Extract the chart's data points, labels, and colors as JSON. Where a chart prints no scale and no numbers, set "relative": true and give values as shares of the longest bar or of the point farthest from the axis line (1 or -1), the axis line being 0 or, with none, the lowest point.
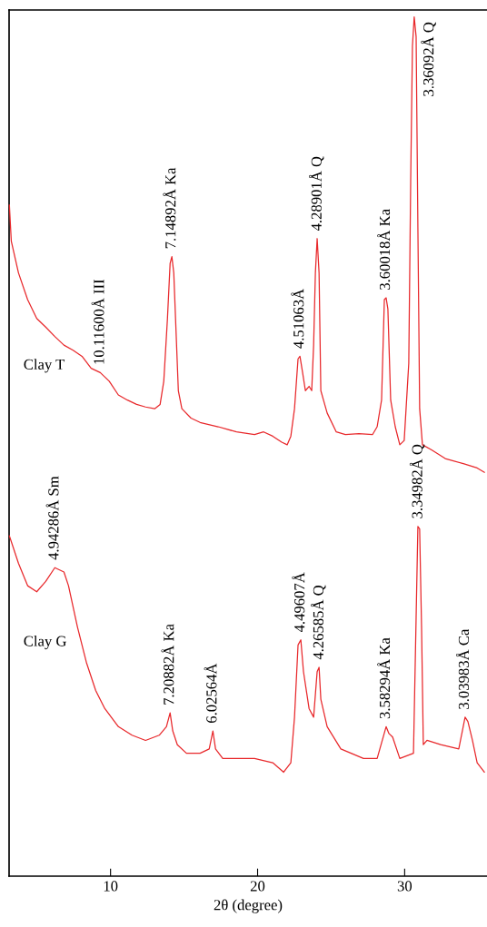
{
  "chart_data": {
    "type": "line",
    "relative": true,
    "xlabel": "2θ (degree)",
    "xlim": [
      3.1,
      35.6
    ],
    "xticks": [
      10,
      20,
      30
    ],
    "tick_labels": "x",
    "grid": false,
    "marker": "none",
    "line_style": "solid",
    "series": [
      {
        "name": "Clay T",
        "color": "#e8282b",
        "x": [
          3.12,
          3.25,
          3.74,
          4.36,
          4.98,
          5.59,
          6.21,
          6.83,
          7.45,
          8.06,
          8.68,
          9.3,
          9.91,
          10.53,
          11.15,
          11.77,
          12.38,
          13.0,
          13.37,
          13.62,
          13.87,
          14.05,
          14.17,
          14.3,
          14.42,
          14.61,
          14.85,
          15.47,
          16.09,
          17.32,
          18.56,
          19.79,
          20.41,
          21.03,
          21.64,
          22.01,
          22.26,
          22.51,
          22.75,
          22.88,
          23.06,
          23.25,
          23.5,
          23.68,
          23.81,
          23.93,
          24.05,
          24.18,
          24.3,
          24.48,
          24.73,
          25.35,
          25.97,
          26.89,
          27.82,
          28.13,
          28.43,
          28.62,
          28.74,
          28.86,
          29.05,
          29.36,
          29.67,
          29.97,
          30.28,
          30.41,
          30.53,
          30.65,
          30.78,
          30.9,
          31.02,
          31.21,
          31.83,
          32.76,
          33.99,
          34.93,
          35.42
        ],
        "values": [
          0.781,
          0.739,
          0.702,
          0.671,
          0.649,
          0.639,
          0.628,
          0.618,
          0.612,
          0.605,
          0.591,
          0.586,
          0.576,
          0.56,
          0.554,
          0.549,
          0.546,
          0.544,
          0.549,
          0.576,
          0.649,
          0.713,
          0.721,
          0.702,
          0.649,
          0.565,
          0.544,
          0.533,
          0.528,
          0.523,
          0.517,
          0.514,
          0.517,
          0.512,
          0.505,
          0.502,
          0.512,
          0.544,
          0.602,
          0.605,
          0.586,
          0.565,
          0.57,
          0.565,
          0.618,
          0.702,
          0.742,
          0.702,
          0.565,
          0.554,
          0.539,
          0.517,
          0.514,
          0.515,
          0.514,
          0.523,
          0.554,
          0.671,
          0.673,
          0.66,
          0.554,
          0.523,
          0.502,
          0.507,
          0.597,
          0.808,
          0.966,
          1,
          0.977,
          0.755,
          0.544,
          0.502,
          0.496,
          0.486,
          0.48,
          0.475,
          0.47
        ]
      },
      {
        "name": "Clay G",
        "color": "#e8282b",
        "x": [
          3.12,
          3.74,
          4.36,
          4.98,
          5.59,
          6.21,
          6.83,
          7.14,
          7.75,
          8.37,
          8.99,
          9.61,
          10.53,
          11.46,
          12.38,
          13.31,
          13.8,
          14.05,
          14.23,
          14.54,
          15.16,
          16.09,
          16.71,
          16.96,
          17.14,
          17.63,
          18.56,
          19.79,
          21.03,
          21.77,
          22.26,
          22.51,
          22.75,
          22.94,
          23.12,
          23.5,
          23.81,
          24.05,
          24.18,
          24.3,
          24.73,
          25.66,
          27.2,
          28.13,
          28.74,
          28.93,
          29.18,
          29.67,
          30.6,
          30.78,
          30.9,
          31.02,
          31.15,
          31.27,
          31.52,
          32.45,
          33.68,
          34.11,
          34.3,
          34.61,
          34.93,
          35.42
        ],
        "values": [
          0.396,
          0.364,
          0.338,
          0.331,
          0.343,
          0.359,
          0.354,
          0.338,
          0.29,
          0.248,
          0.216,
          0.195,
          0.174,
          0.164,
          0.158,
          0.164,
          0.174,
          0.19,
          0.169,
          0.153,
          0.143,
          0.143,
          0.148,
          0.169,
          0.148,
          0.137,
          0.137,
          0.137,
          0.132,
          0.121,
          0.132,
          0.185,
          0.269,
          0.275,
          0.238,
          0.195,
          0.185,
          0.238,
          0.243,
          0.206,
          0.174,
          0.148,
          0.137,
          0.137,
          0.174,
          0.166,
          0.162,
          0.137,
          0.143,
          0.301,
          0.407,
          0.404,
          0.29,
          0.153,
          0.158,
          0.153,
          0.148,
          0.185,
          0.18,
          0.158,
          0.132,
          0.121
        ]
      }
    ],
    "annotations": [
      {
        "text": "10.11600Å III",
        "x": 9.3,
        "y": 0.586
      },
      {
        "text": "7.14892Å Ka",
        "x": 14.17,
        "y": 0.721
      },
      {
        "text": "4.51063Å",
        "x": 22.88,
        "y": 0.605
      },
      {
        "text": "4.28901Å Q",
        "x": 24.05,
        "y": 0.742
      },
      {
        "text": "3.60018Å Ka",
        "x": 28.74,
        "y": 0.673
      },
      {
        "text": "3.36092Å Q",
        "x": 30.65,
        "y": 1
      },
      {
        "text": "4.94286Å Sm",
        "x": 6.21,
        "y": 0.359
      },
      {
        "text": "7.20882Å Ka",
        "x": 14.05,
        "y": 0.19
      },
      {
        "text": "6.02564Å",
        "x": 16.96,
        "y": 0.169
      },
      {
        "text": "4.49607Å",
        "x": 22.94,
        "y": 0.275
      },
      {
        "text": "4.26585Å Q",
        "x": 24.18,
        "y": 0.243
      },
      {
        "text": "3.58294Å Ka",
        "x": 28.74,
        "y": 0.174
      },
      {
        "text": "3.34982Å Q",
        "x": 30.9,
        "y": 0.407
      },
      {
        "text": "3.03983Å Ca",
        "x": 34.11,
        "y": 0.185
      }
    ]
  }
}
